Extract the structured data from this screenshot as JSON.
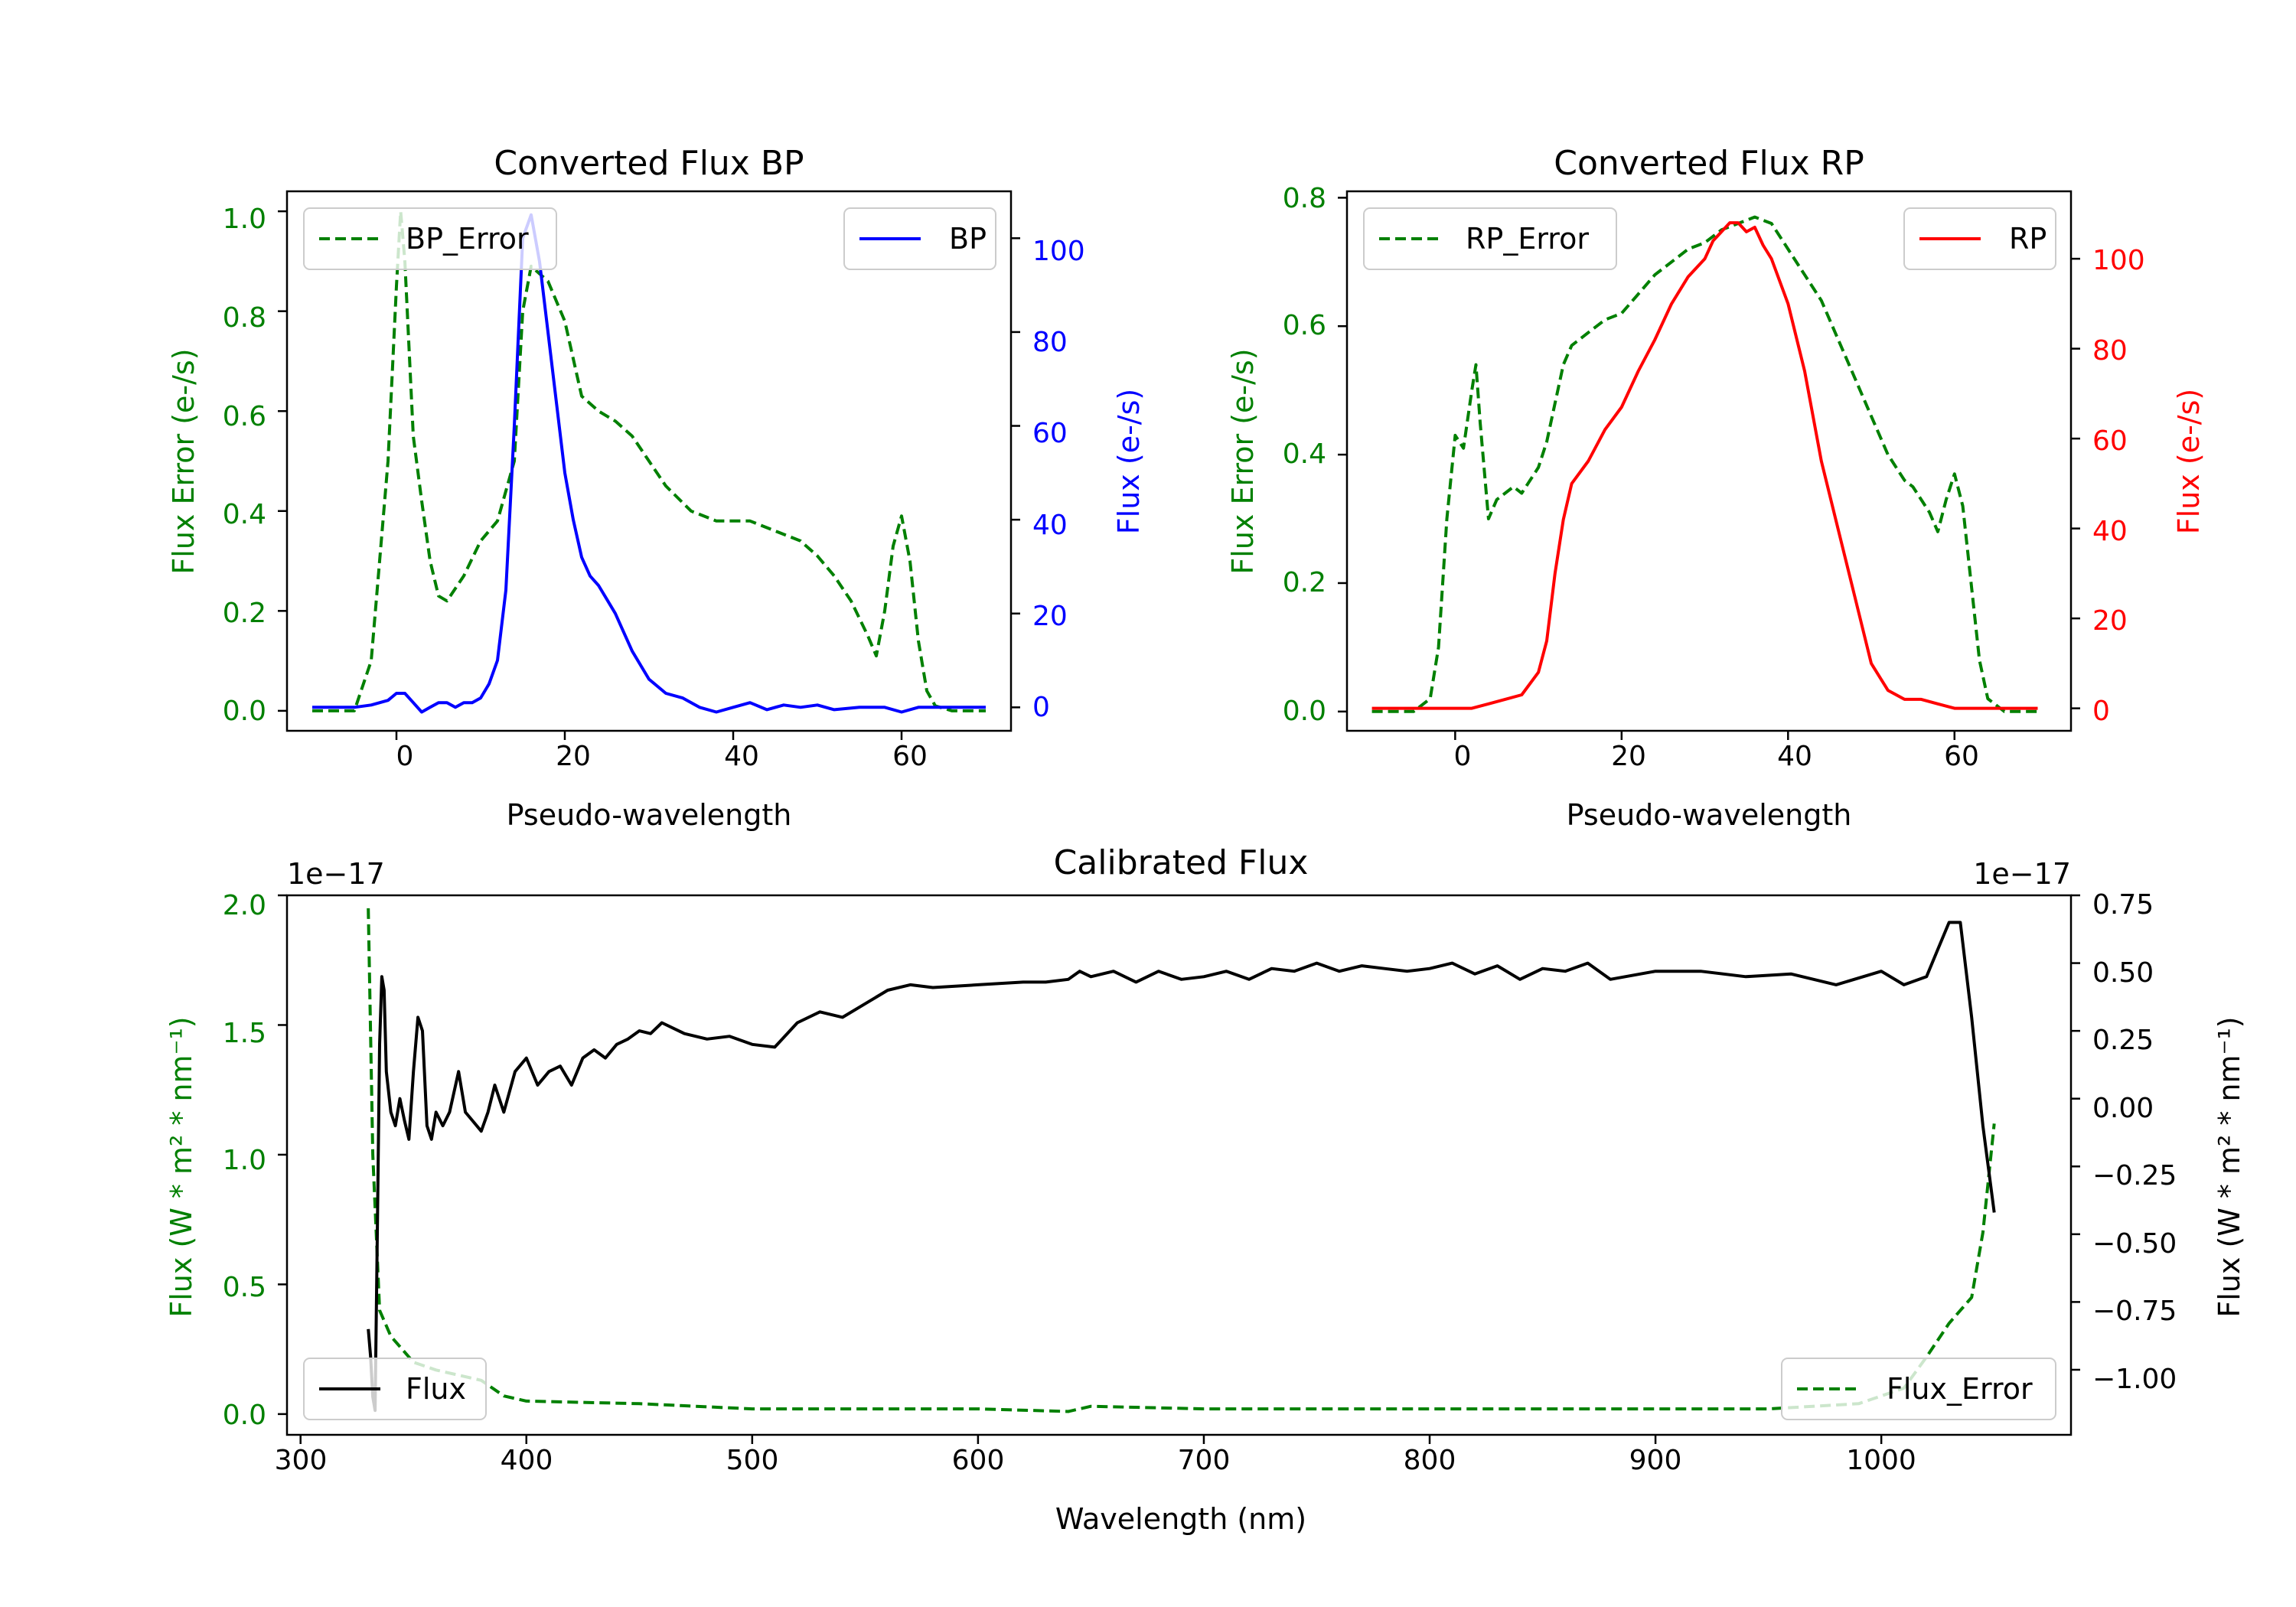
{
  "colors": {
    "bp": "#0000ff",
    "rp": "#ff0000",
    "error": "#008000",
    "flux": "#000000",
    "axis": "#000000"
  },
  "chart_data": [
    {
      "id": "bp",
      "type": "line",
      "title": "Converted Flux BP",
      "xlabel": "Pseudo-wavelength",
      "ylabel_left": "Flux Error (e-/s)",
      "ylabel_right": "Flux (e-/s)",
      "xlim": [
        -13,
        73
      ],
      "ylim_left": [
        -0.04,
        1.04
      ],
      "ylim_right": [
        -5,
        110
      ],
      "xticks": [
        0,
        20,
        40,
        60
      ],
      "xtick_labels": [
        "0",
        "20",
        "40",
        "60"
      ],
      "yticks_left": [
        0.0,
        0.2,
        0.4,
        0.6,
        0.8,
        1.0
      ],
      "ytick_labels_left": [
        "0.0",
        "0.2",
        "0.4",
        "0.6",
        "0.8",
        "1.0"
      ],
      "yticks_right": [
        0,
        20,
        40,
        60,
        80,
        100
      ],
      "ytick_labels_right": [
        "0",
        "20",
        "40",
        "60",
        "80",
        "100"
      ],
      "legend_left": {
        "label": "BP_Error",
        "placement": "upper left"
      },
      "legend_right": {
        "label": "BP",
        "placement": "upper right"
      },
      "series": [
        {
          "name": "BP_Error",
          "axis": "left",
          "style": "dashed",
          "color": "#008000",
          "x": [
            -10,
            -5,
            -3,
            -1,
            0,
            0.5,
            1,
            2,
            3,
            4,
            5,
            6,
            8,
            10,
            12,
            14,
            15,
            16,
            18,
            20,
            22,
            24,
            26,
            28,
            30,
            32,
            35,
            38,
            40,
            42,
            45,
            48,
            50,
            52,
            54,
            56,
            57,
            58,
            59,
            60,
            61,
            62,
            63,
            64,
            66,
            70
          ],
          "y": [
            0.0,
            0.0,
            0.1,
            0.5,
            0.85,
            1.0,
            0.9,
            0.55,
            0.42,
            0.3,
            0.23,
            0.22,
            0.27,
            0.34,
            0.38,
            0.5,
            0.8,
            0.89,
            0.86,
            0.78,
            0.63,
            0.6,
            0.58,
            0.55,
            0.5,
            0.45,
            0.4,
            0.38,
            0.38,
            0.38,
            0.36,
            0.34,
            0.31,
            0.27,
            0.22,
            0.15,
            0.11,
            0.2,
            0.33,
            0.39,
            0.3,
            0.14,
            0.04,
            0.01,
            0.0,
            0.0
          ]
        },
        {
          "name": "BP",
          "axis": "right",
          "style": "solid",
          "color": "#0000ff",
          "x": [
            -10,
            -5,
            -3,
            -1,
            0,
            1,
            2,
            3,
            4,
            5,
            6,
            7,
            8,
            9,
            10,
            11,
            12,
            13,
            14,
            15,
            16,
            17,
            18,
            19,
            20,
            21,
            22,
            23,
            24,
            25,
            26,
            27,
            28,
            30,
            32,
            34,
            36,
            38,
            40,
            42,
            44,
            46,
            48,
            50,
            52,
            55,
            58,
            60,
            62,
            65,
            70
          ],
          "y": [
            0,
            0,
            0.5,
            1.5,
            3,
            3,
            1,
            -1,
            0,
            1,
            1,
            0,
            1,
            1,
            2,
            5,
            10,
            25,
            60,
            100,
            105,
            95,
            80,
            65,
            50,
            40,
            32,
            28,
            26,
            23,
            20,
            16,
            12,
            6,
            3,
            2,
            0,
            -1,
            0,
            1,
            -0.5,
            0.5,
            0,
            0.5,
            -0.5,
            0,
            0,
            -1,
            0,
            0,
            0
          ]
        }
      ]
    },
    {
      "id": "rp",
      "type": "line",
      "title": "Converted Flux RP",
      "xlabel": "Pseudo-wavelength",
      "ylabel_left": "Flux Error (e-/s)",
      "ylabel_right": "Flux (e-/s)",
      "xlim": [
        -13,
        74
      ],
      "ylim_left": [
        -0.03,
        0.81
      ],
      "ylim_right": [
        -5,
        115
      ],
      "xticks": [
        0,
        20,
        40,
        60
      ],
      "xtick_labels": [
        "0",
        "20",
        "40",
        "60"
      ],
      "yticks_left": [
        0.0,
        0.2,
        0.4,
        0.6,
        0.8
      ],
      "ytick_labels_left": [
        "0.0",
        "0.2",
        "0.4",
        "0.6",
        "0.8"
      ],
      "yticks_right": [
        0,
        20,
        40,
        60,
        80,
        100
      ],
      "ytick_labels_right": [
        "0",
        "20",
        "40",
        "60",
        "80",
        "100"
      ],
      "legend_left": {
        "label": "RP_Error",
        "placement": "upper left"
      },
      "legend_right": {
        "label": "RP",
        "placement": "upper right"
      },
      "series": [
        {
          "name": "RP_Error",
          "axis": "left",
          "style": "dashed",
          "color": "#008000",
          "x": [
            -10,
            -5,
            -3,
            -2,
            -1,
            0,
            1,
            2,
            2.5,
            3,
            4,
            5,
            6,
            7,
            8,
            9,
            10,
            11,
            12,
            13,
            14,
            15,
            16,
            18,
            20,
            22,
            24,
            26,
            28,
            30,
            32,
            34,
            36,
            38,
            40,
            42,
            44,
            46,
            48,
            50,
            52,
            54,
            55,
            56,
            57,
            58,
            59,
            60,
            61,
            62,
            63,
            64,
            66,
            70
          ],
          "y": [
            0.0,
            0.0,
            0.02,
            0.1,
            0.3,
            0.43,
            0.41,
            0.5,
            0.54,
            0.45,
            0.3,
            0.33,
            0.34,
            0.35,
            0.34,
            0.36,
            0.38,
            0.42,
            0.48,
            0.54,
            0.57,
            0.58,
            0.59,
            0.61,
            0.62,
            0.65,
            0.68,
            0.7,
            0.72,
            0.73,
            0.75,
            0.76,
            0.77,
            0.76,
            0.72,
            0.68,
            0.64,
            0.58,
            0.52,
            0.46,
            0.4,
            0.36,
            0.35,
            0.33,
            0.31,
            0.28,
            0.33,
            0.37,
            0.32,
            0.2,
            0.08,
            0.02,
            0.0,
            0.0
          ]
        },
        {
          "name": "RP",
          "axis": "right",
          "style": "solid",
          "color": "#ff0000",
          "x": [
            -10,
            -5,
            0,
            2,
            4,
            6,
            8,
            10,
            11,
            12,
            13,
            14,
            16,
            18,
            20,
            22,
            24,
            26,
            28,
            30,
            31,
            32,
            33,
            34,
            35,
            36,
            37,
            38,
            40,
            42,
            44,
            46,
            48,
            50,
            52,
            54,
            56,
            58,
            60,
            65,
            70
          ],
          "y": [
            0,
            0,
            0,
            0,
            1,
            2,
            3,
            8,
            15,
            30,
            42,
            50,
            55,
            62,
            67,
            75,
            82,
            90,
            96,
            100,
            104,
            106,
            108,
            108,
            106,
            107,
            103,
            100,
            90,
            75,
            55,
            40,
            25,
            10,
            4,
            2,
            2,
            1,
            0,
            0,
            0
          ]
        }
      ]
    },
    {
      "id": "cal",
      "type": "line",
      "title": "Calibrated Flux",
      "xlabel": "Wavelength (nm)",
      "ylabel_left": "Flux (W * m² * nm⁻¹)",
      "ylabel_right": "Flux (W * m² * nm⁻¹)",
      "offset_left": "1e−17",
      "offset_right": "1e−17",
      "xlim": [
        294,
        1084
      ],
      "ylim_left": [
        -0.08,
        2.0
      ],
      "ylim_right": [
        -1.24,
        0.75
      ],
      "xticks": [
        300,
        400,
        500,
        600,
        700,
        800,
        900,
        1000
      ],
      "xtick_labels": [
        "300",
        "400",
        "500",
        "600",
        "700",
        "800",
        "900",
        "1000"
      ],
      "yticks_left": [
        0.0,
        0.5,
        1.0,
        1.5,
        2.0
      ],
      "ytick_labels_left": [
        "0.0",
        "0.5",
        "1.0",
        "1.5",
        "2.0"
      ],
      "yticks_right": [
        -1.0,
        -0.75,
        -0.5,
        -0.25,
        0.0,
        0.25,
        0.5,
        0.75
      ],
      "ytick_labels_right": [
        "−1.00",
        "−0.75",
        "−0.50",
        "−0.25",
        "0.00",
        "0.25",
        "0.50",
        "0.75"
      ],
      "legend_left": {
        "label": "Flux",
        "placement": "lower left"
      },
      "legend_right": {
        "label": "Flux_Error",
        "placement": "lower right"
      },
      "series": [
        {
          "name": "Flux_Error",
          "axis": "left",
          "style": "dashed",
          "color": "#008000",
          "x": [
            330,
            332,
            335,
            340,
            350,
            360,
            370,
            380,
            390,
            400,
            450,
            500,
            550,
            600,
            640,
            650,
            700,
            800,
            900,
            950,
            990,
            1010,
            1020,
            1030,
            1040,
            1045,
            1050
          ],
          "y": [
            1.95,
            1.0,
            0.4,
            0.3,
            0.2,
            0.17,
            0.15,
            0.13,
            0.07,
            0.05,
            0.04,
            0.02,
            0.02,
            0.02,
            0.01,
            0.03,
            0.02,
            0.02,
            0.02,
            0.02,
            0.04,
            0.1,
            0.22,
            0.35,
            0.45,
            0.7,
            1.12
          ]
        },
        {
          "name": "Flux",
          "axis": "right",
          "style": "solid",
          "color": "#000000",
          "x": [
            330,
            331,
            332,
            333,
            334,
            335,
            336,
            337,
            338,
            340,
            342,
            344,
            346,
            348,
            350,
            352,
            354,
            356,
            358,
            360,
            363,
            366,
            370,
            373,
            376,
            380,
            383,
            386,
            390,
            395,
            400,
            405,
            410,
            415,
            420,
            425,
            430,
            435,
            440,
            445,
            450,
            455,
            460,
            470,
            480,
            490,
            500,
            510,
            520,
            530,
            540,
            550,
            560,
            570,
            580,
            600,
            620,
            630,
            640,
            645,
            650,
            660,
            670,
            680,
            690,
            700,
            710,
            720,
            730,
            740,
            750,
            760,
            770,
            780,
            790,
            800,
            810,
            820,
            830,
            840,
            850,
            860,
            870,
            880,
            900,
            920,
            940,
            960,
            980,
            1000,
            1010,
            1020,
            1025,
            1030,
            1035,
            1040,
            1045,
            1050
          ],
          "y": [
            -0.85,
            -0.95,
            -1.1,
            -1.15,
            -0.5,
            0.2,
            0.45,
            0.4,
            0.1,
            -0.05,
            -0.1,
            0.0,
            -0.08,
            -0.15,
            0.1,
            0.3,
            0.25,
            -0.1,
            -0.15,
            -0.05,
            -0.1,
            -0.05,
            0.1,
            -0.05,
            -0.08,
            -0.12,
            -0.05,
            0.05,
            -0.05,
            0.1,
            0.15,
            0.05,
            0.1,
            0.12,
            0.05,
            0.15,
            0.18,
            0.15,
            0.2,
            0.22,
            0.25,
            0.24,
            0.28,
            0.24,
            0.22,
            0.23,
            0.2,
            0.19,
            0.28,
            0.32,
            0.3,
            0.35,
            0.4,
            0.42,
            0.41,
            0.42,
            0.43,
            0.43,
            0.44,
            0.47,
            0.45,
            0.47,
            0.43,
            0.47,
            0.44,
            0.45,
            0.47,
            0.44,
            0.48,
            0.47,
            0.5,
            0.47,
            0.49,
            0.48,
            0.47,
            0.48,
            0.5,
            0.46,
            0.49,
            0.44,
            0.48,
            0.47,
            0.5,
            0.44,
            0.47,
            0.47,
            0.45,
            0.46,
            0.42,
            0.47,
            0.42,
            0.45,
            0.55,
            0.65,
            0.65,
            0.3,
            -0.1,
            -0.42
          ]
        }
      ]
    }
  ]
}
